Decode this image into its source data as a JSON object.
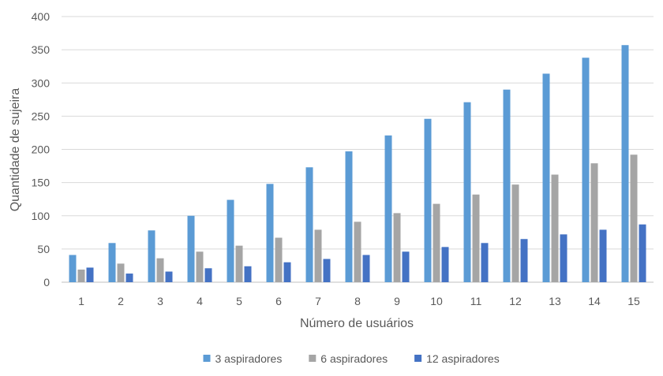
{
  "chart_data": {
    "type": "bar",
    "title": "",
    "xlabel": "Número de usuários",
    "ylabel": "Quantidade de sujeira",
    "ylim": [
      0,
      400
    ],
    "yticks": [
      0,
      50,
      100,
      150,
      200,
      250,
      300,
      350,
      400
    ],
    "grid": true,
    "legend_position": "bottom",
    "categories": [
      "1",
      "2",
      "3",
      "4",
      "5",
      "6",
      "7",
      "8",
      "9",
      "10",
      "11",
      "12",
      "13",
      "14",
      "15"
    ],
    "series": [
      {
        "name": "3 aspiradores",
        "color": "#5B9BD5",
        "values": [
          41,
          59,
          78,
          100,
          124,
          148,
          173,
          197,
          221,
          246,
          271,
          290,
          314,
          338,
          357
        ]
      },
      {
        "name": "6 aspiradores",
        "color": "#A5A5A5",
        "values": [
          19,
          28,
          36,
          46,
          55,
          67,
          79,
          91,
          104,
          118,
          132,
          147,
          162,
          179,
          192
        ]
      },
      {
        "name": "12 aspiradores",
        "color": "#4472C4",
        "values": [
          22,
          13,
          16,
          21,
          24,
          30,
          35,
          41,
          46,
          53,
          59,
          65,
          72,
          79,
          87
        ]
      }
    ]
  }
}
